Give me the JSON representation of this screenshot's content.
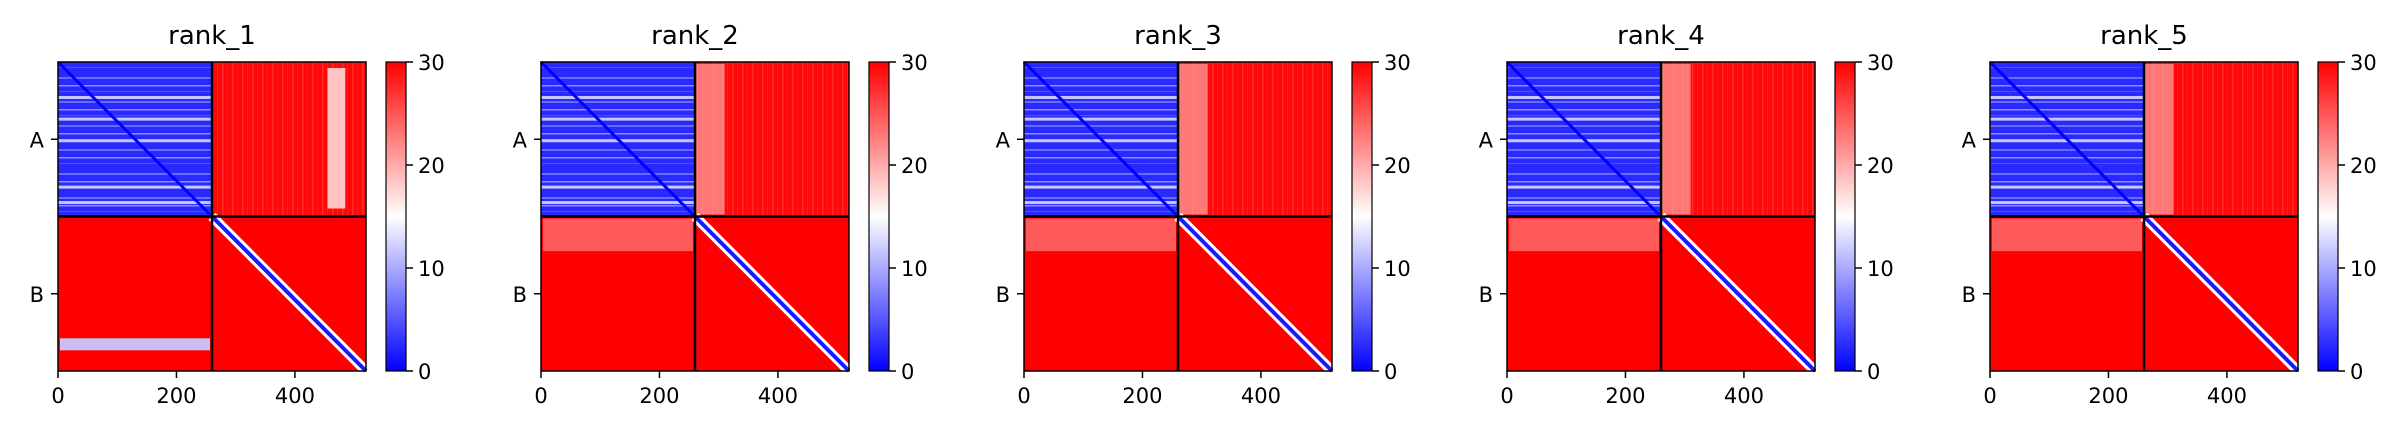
{
  "chart_data": [
    {
      "type": "heatmap",
      "title": "rank_1",
      "x_ticks": [
        0,
        200,
        400
      ],
      "x_range": [
        0,
        520
      ],
      "chain_boundary": 260,
      "y_tick_labels": [
        "A",
        "B"
      ],
      "colorbar": {
        "range": [
          0,
          30
        ],
        "ticks": [
          0,
          10,
          20,
          30
        ],
        "colors": [
          "#0000ff",
          "#ffffff",
          "#ff0000"
        ]
      },
      "blocks": [
        {
          "name": "A-A",
          "mean": 2
        },
        {
          "name": "A-B",
          "mean": 30,
          "feature": "light band near x≈460–480"
        },
        {
          "name": "B-A",
          "mean": 30,
          "feature": "blue band near y≈465"
        },
        {
          "name": "B-B",
          "mean": 30,
          "feature": "blue diagonal"
        }
      ]
    },
    {
      "type": "heatmap",
      "title": "rank_2",
      "x_ticks": [
        0,
        200,
        400
      ],
      "x_range": [
        0,
        520
      ],
      "chain_boundary": 260,
      "y_tick_labels": [
        "A",
        "B"
      ],
      "colorbar": {
        "range": [
          0,
          30
        ],
        "ticks": [
          0,
          10,
          20,
          30
        ],
        "colors": [
          "#0000ff",
          "#ffffff",
          "#ff0000"
        ]
      },
      "blocks": [
        {
          "name": "A-A",
          "mean": 2
        },
        {
          "name": "A-B",
          "mean": 30
        },
        {
          "name": "B-A",
          "mean": 30
        },
        {
          "name": "B-B",
          "mean": 30,
          "feature": "blue diagonal"
        }
      ]
    },
    {
      "type": "heatmap",
      "title": "rank_3",
      "x_ticks": [
        0,
        200,
        400
      ],
      "x_range": [
        0,
        520
      ],
      "chain_boundary": 260,
      "y_tick_labels": [
        "A",
        "B"
      ],
      "colorbar": {
        "range": [
          0,
          30
        ],
        "ticks": [
          0,
          10,
          20,
          30
        ],
        "colors": [
          "#0000ff",
          "#ffffff",
          "#ff0000"
        ]
      },
      "blocks": [
        {
          "name": "A-A",
          "mean": 2
        },
        {
          "name": "A-B",
          "mean": 30
        },
        {
          "name": "B-A",
          "mean": 30
        },
        {
          "name": "B-B",
          "mean": 30,
          "feature": "blue diagonal"
        }
      ]
    },
    {
      "type": "heatmap",
      "title": "rank_4",
      "x_ticks": [
        0,
        200,
        400
      ],
      "x_range": [
        0,
        520
      ],
      "chain_boundary": 260,
      "y_tick_labels": [
        "A",
        "B"
      ],
      "colorbar": {
        "range": [
          0,
          30
        ],
        "ticks": [
          0,
          10,
          20,
          30
        ],
        "colors": [
          "#0000ff",
          "#ffffff",
          "#ff0000"
        ]
      },
      "blocks": [
        {
          "name": "A-A",
          "mean": 2
        },
        {
          "name": "A-B",
          "mean": 30
        },
        {
          "name": "B-A",
          "mean": 30
        },
        {
          "name": "B-B",
          "mean": 30,
          "feature": "blue diagonal"
        }
      ]
    },
    {
      "type": "heatmap",
      "title": "rank_5",
      "x_ticks": [
        0,
        200,
        400
      ],
      "x_range": [
        0,
        520
      ],
      "chain_boundary": 260,
      "y_tick_labels": [
        "A",
        "B"
      ],
      "colorbar": {
        "range": [
          0,
          30
        ],
        "ticks": [
          0,
          10,
          20,
          30
        ],
        "colors": [
          "#0000ff",
          "#ffffff",
          "#ff0000"
        ]
      },
      "blocks": [
        {
          "name": "A-A",
          "mean": 2
        },
        {
          "name": "A-B",
          "mean": 30
        },
        {
          "name": "B-A",
          "mean": 30
        },
        {
          "name": "B-B",
          "mean": 30,
          "feature": "blue diagonal"
        }
      ]
    }
  ]
}
